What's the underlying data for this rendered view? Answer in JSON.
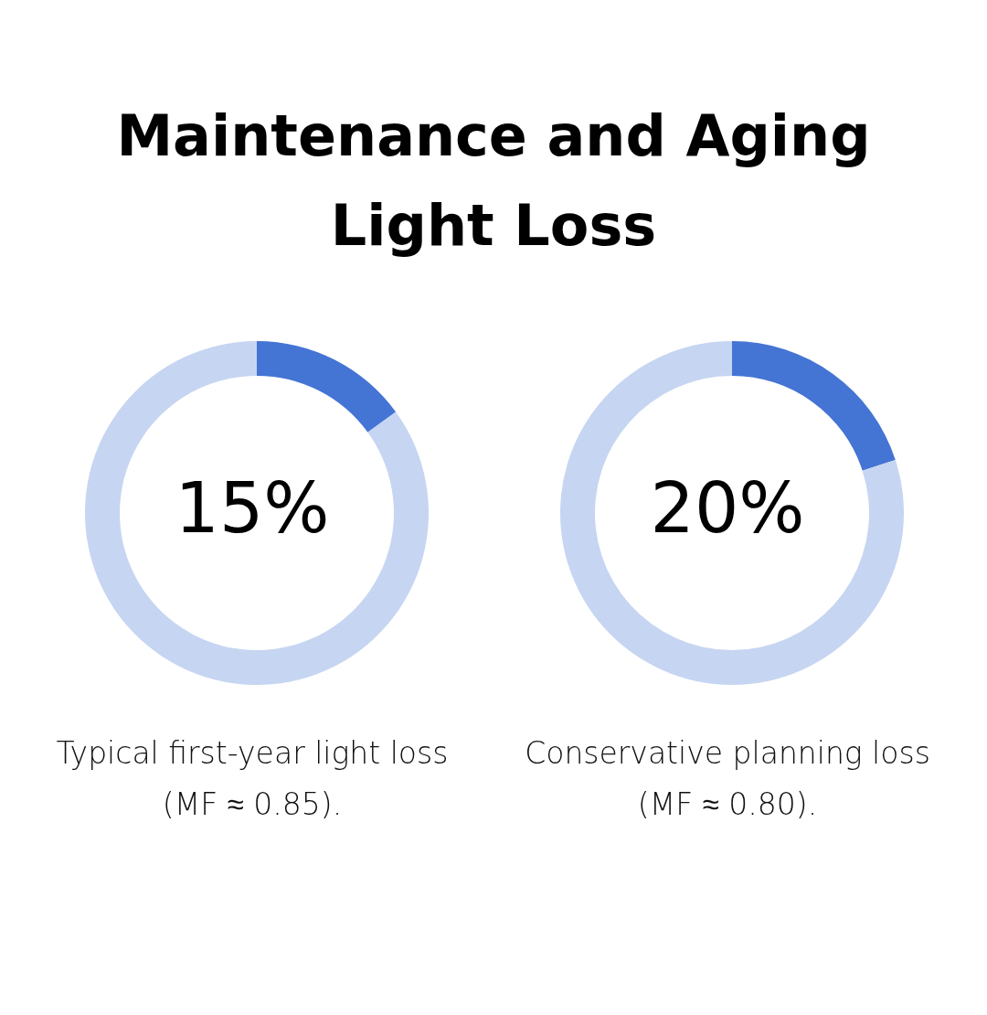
{
  "chart_data": [
    {
      "type": "donut",
      "title": "Maintenance and Aging Light Loss",
      "categories": [
        null,
        null
      ],
      "values": [
        15,
        85
      ],
      "colors": [
        "#4474d4",
        "#c6d5f1"
      ],
      "annotations": [
        "15%",
        "Typical first-year light loss (MF ≈ 0.85)."
      ]
    },
    {
      "type": "donut",
      "categories": [
        null,
        null
      ],
      "values": [
        20,
        80
      ],
      "colors": [
        "#4474d4",
        "#c6d5f1"
      ],
      "annotations": [
        "20%",
        "Conservative planning loss (MF ≈ 0.80)."
      ]
    }
  ]
}
